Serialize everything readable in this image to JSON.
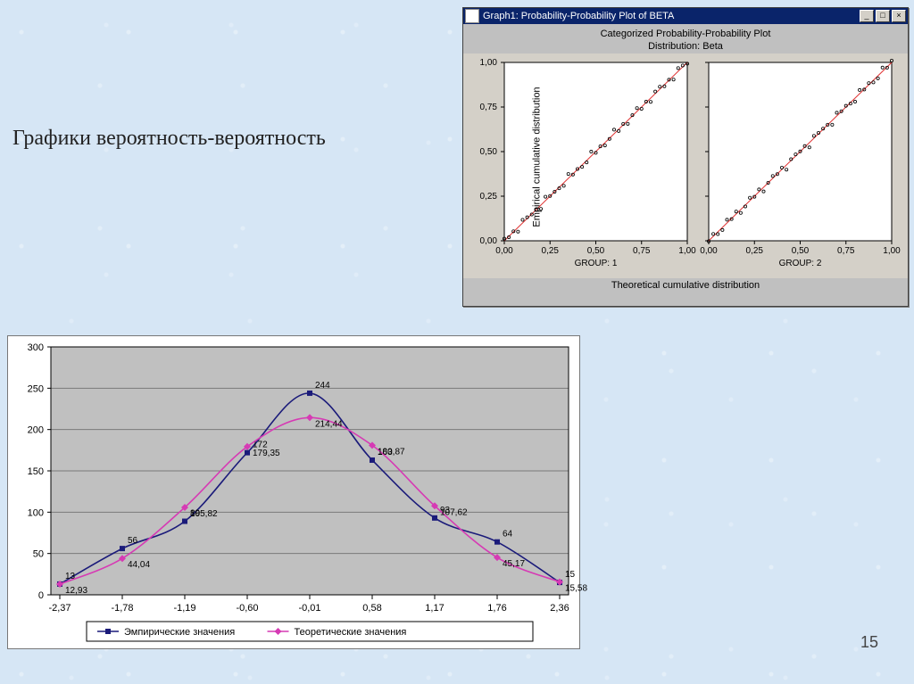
{
  "page_number": "15",
  "title_text": "Графики вероятность-вероятность",
  "pp_window": {
    "title_bar": "Graph1: Probability-Probability Plot of BETA",
    "title1": "Categorized Probability-Probability Plot",
    "title2": "Distribution: Beta",
    "ylabel": "Empirical cumulative distribution",
    "xlabel": "Theoretical cumulative distribution",
    "ticks": [
      "0,00",
      "0,25",
      "0,50",
      "0,75",
      "1,00"
    ],
    "group_labels": [
      "GROUP: 1",
      "GROUP: 2"
    ],
    "plot_bg": "#ffffff",
    "panel_bg": "#d4d0c8",
    "line_color": "#e03030",
    "marker_color": "#000000",
    "axis_color": "#000000",
    "fontsize": 11
  },
  "bell_chart": {
    "type": "line",
    "plot_bg": "#c0c0c0",
    "outer_bg": "#ffffff",
    "grid_color": "#7a7a7a",
    "axis_color": "#000000",
    "label_fontsize": 11,
    "x_categories": [
      "-2,37",
      "-1,78",
      "-1,19",
      "-0,60",
      "-0,01",
      "0,58",
      "1,17",
      "1,76",
      "2,36"
    ],
    "y_ticks": [
      0,
      50,
      100,
      150,
      200,
      250,
      300
    ],
    "ylim": [
      0,
      300
    ],
    "series": [
      {
        "name": "Эмпирические значения",
        "color": "#1b1b7a",
        "marker": "square",
        "marker_color": "#1b1b7a",
        "values": [
          13,
          56,
          89,
          172,
          244,
          163,
          93,
          64,
          15
        ],
        "labels": [
          "13",
          "56",
          "89",
          "172",
          "244",
          "163",
          "93",
          "64",
          "15"
        ]
      },
      {
        "name": "Теоретические значения",
        "color": "#d63ab4",
        "marker": "diamond",
        "marker_color": "#d63ab4",
        "values": [
          12.93,
          44.04,
          105.82,
          179.35,
          214.44,
          180.87,
          107.62,
          45.17,
          15.58
        ],
        "labels": [
          "12,93",
          "44,04",
          "105,82",
          "179,35",
          "214,44",
          "180,87",
          "107,62",
          "45,17",
          "15,58"
        ]
      }
    ],
    "legend": [
      "Эмпирические значения",
      "Теоретические значения"
    ]
  }
}
